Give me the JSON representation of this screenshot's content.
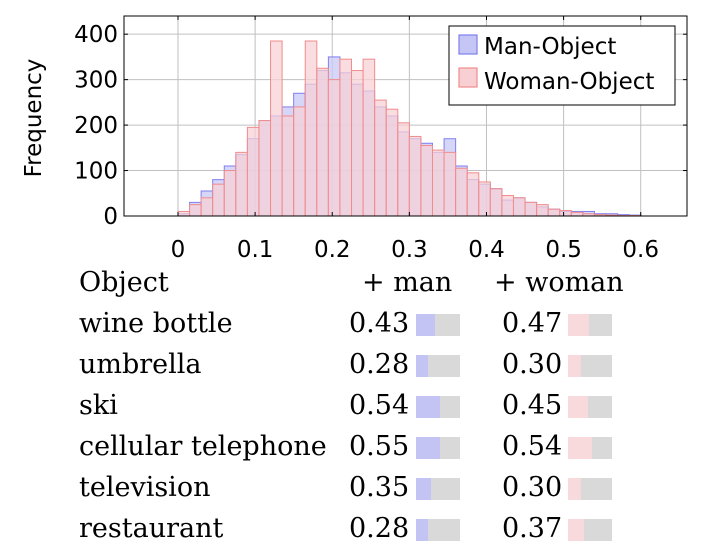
{
  "chart_data": {
    "type": "histogram",
    "ylabel": "Frequency",
    "xlim": [
      -0.07,
      0.66
    ],
    "ylim": [
      0,
      440
    ],
    "x_ticks": [
      "0",
      "0.1",
      "0.2",
      "0.3",
      "0.4",
      "0.5",
      "0.6"
    ],
    "x_tick_values": [
      0,
      0.1,
      0.2,
      0.3,
      0.4,
      0.5,
      0.6
    ],
    "y_ticks": [
      "0",
      "100",
      "200",
      "300",
      "400"
    ],
    "y_tick_values": [
      0,
      100,
      200,
      300,
      400
    ],
    "grid": true,
    "legend_position": "top-right",
    "bin_edges": [
      0,
      0.015,
      0.03,
      0.045,
      0.06,
      0.075,
      0.09,
      0.105,
      0.12,
      0.135,
      0.15,
      0.165,
      0.18,
      0.195,
      0.21,
      0.225,
      0.24,
      0.255,
      0.27,
      0.285,
      0.3,
      0.315,
      0.33,
      0.345,
      0.36,
      0.375,
      0.39,
      0.405,
      0.42,
      0.435,
      0.45,
      0.465,
      0.48,
      0.495,
      0.51,
      0.525,
      0.54,
      0.555,
      0.57,
      0.585,
      0.6
    ],
    "series": [
      {
        "name": "Man-Object",
        "color": "#7f7ff0",
        "fill": "#c6c6f6",
        "values": [
          5,
          30,
          55,
          80,
          110,
          135,
          170,
          210,
          220,
          240,
          270,
          290,
          320,
          350,
          315,
          290,
          275,
          240,
          220,
          185,
          170,
          160,
          140,
          170,
          110,
          80,
          70,
          60,
          35,
          40,
          30,
          20,
          15,
          10,
          10,
          10,
          5,
          5,
          3,
          2
        ]
      },
      {
        "name": "Woman-Object",
        "color": "#f08c8c",
        "fill": "#f8d0d4",
        "values": [
          10,
          25,
          40,
          70,
          100,
          140,
          195,
          210,
          385,
          220,
          240,
          385,
          325,
          300,
          345,
          320,
          345,
          255,
          235,
          205,
          175,
          155,
          145,
          140,
          105,
          95,
          75,
          60,
          45,
          40,
          30,
          25,
          15,
          12,
          8,
          5,
          3,
          2,
          1,
          1
        ]
      }
    ]
  },
  "legend": {
    "man": "Man-Object",
    "woman": "Woman-Object"
  },
  "table": {
    "headers": {
      "object": "Object",
      "man": "+ man",
      "woman": "+ woman"
    },
    "rows": [
      {
        "object": "wine bottle",
        "man": "0.43",
        "woman": "0.47",
        "man_value": 0.43,
        "woman_value": 0.47
      },
      {
        "object": "umbrella",
        "man": "0.28",
        "woman": "0.30",
        "man_value": 0.28,
        "woman_value": 0.3
      },
      {
        "object": "ski",
        "man": "0.54",
        "woman": "0.45",
        "man_value": 0.54,
        "woman_value": 0.45
      },
      {
        "object": "cellular telephone",
        "man": "0.55",
        "woman": "0.54",
        "man_value": 0.55,
        "woman_value": 0.54
      },
      {
        "object": "television",
        "man": "0.35",
        "woman": "0.30",
        "man_value": 0.35,
        "woman_value": 0.3
      },
      {
        "object": "restaurant",
        "man": "0.28",
        "woman": "0.37",
        "man_value": 0.28,
        "woman_value": 0.37
      }
    ],
    "colors": {
      "man_fill": "#c4c4f4",
      "woman_fill": "#f8dadc",
      "track": "#d9d9d9"
    }
  }
}
